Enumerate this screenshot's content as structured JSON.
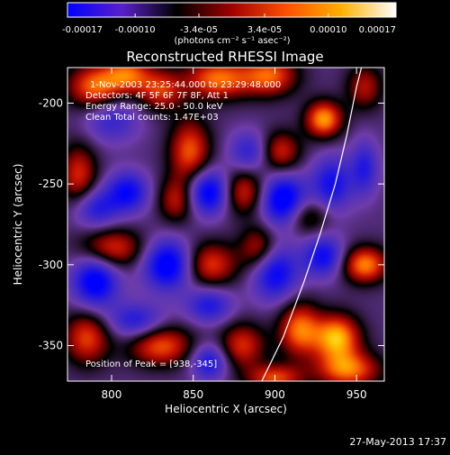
{
  "chart_data": {
    "type": "heatmap",
    "title": "Reconstructed RHESSI Image",
    "xlabel": "Heliocentric X (arcsec)",
    "ylabel": "Heliocentric Y (arcsec)",
    "xlim": [
      773,
      967
    ],
    "ylim": [
      -372,
      -178
    ],
    "x_ticks": [
      800,
      850,
      900,
      950
    ],
    "y_ticks": [
      -200,
      -250,
      -300,
      -350
    ],
    "x_tick_labels": [
      "800",
      "850",
      "900",
      "950"
    ],
    "y_tick_labels": [
      "-200",
      "-250",
      "-300",
      "-350"
    ],
    "colorbar": {
      "range": [
        -0.00017,
        0.00017
      ],
      "tick_values": [
        -0.00017,
        -0.0001,
        -3.4e-05,
        3.4e-05,
        0.0001,
        0.00017
      ],
      "tick_labels": [
        "-0.00017",
        "-0.00010",
        "-3.4e-05",
        "3.4e-05",
        "0.00010",
        "0.00017"
      ],
      "units_label": "(photons cm⁻² s⁻¹ asec⁻²)",
      "colors": [
        "#0000ff",
        "#5a20c8",
        "#000000",
        "#a00000",
        "#ff5000",
        "#ffb000",
        "#ffffff"
      ]
    },
    "annotations": [
      "1-Nov-2003 23:25:44.000 to 23:29:48.000",
      "Detectors: 4F 5F 6F 7F 8F, Att 1",
      "Energy Range: 25.0 - 50.0 keV",
      "Clean     Total counts: 1.47E+03"
    ],
    "peak_label": "Position of Peak = [938,-345]",
    "peak": [
      938,
      -345
    ],
    "limb_curve": [
      [
        892,
        -372
      ],
      [
        905,
        -345
      ],
      [
        918,
        -310
      ],
      [
        928,
        -280
      ],
      [
        937,
        -250
      ],
      [
        944,
        -220
      ],
      [
        950,
        -190
      ],
      [
        953,
        -178
      ]
    ],
    "blobs": [
      {
        "x": 790,
        "y": -190,
        "v": 0.00014,
        "sx": 12,
        "sy": 10
      },
      {
        "x": 810,
        "y": -182,
        "v": 0.00012,
        "sx": 10,
        "sy": 8
      },
      {
        "x": 830,
        "y": -192,
        "v": 0.00011,
        "sx": 10,
        "sy": 9
      },
      {
        "x": 865,
        "y": -185,
        "v": 0.00014,
        "sx": 14,
        "sy": 9
      },
      {
        "x": 897,
        "y": -183,
        "v": 0.00013,
        "sx": 12,
        "sy": 9
      },
      {
        "x": 930,
        "y": -210,
        "v": 0.00016,
        "sx": 8,
        "sy": 8
      },
      {
        "x": 955,
        "y": -190,
        "v": 9e-05,
        "sx": 8,
        "sy": 10
      },
      {
        "x": 780,
        "y": -245,
        "v": 0.00011,
        "sx": 8,
        "sy": 14
      },
      {
        "x": 848,
        "y": -230,
        "v": 0.00013,
        "sx": 9,
        "sy": 14
      },
      {
        "x": 840,
        "y": -260,
        "v": 0.0001,
        "sx": 8,
        "sy": 10
      },
      {
        "x": 880,
        "y": -255,
        "v": 0.00012,
        "sx": 10,
        "sy": 10
      },
      {
        "x": 903,
        "y": -230,
        "v": 0.00011,
        "sx": 9,
        "sy": 9
      },
      {
        "x": 920,
        "y": -270,
        "v": 8e-05,
        "sx": 9,
        "sy": 8
      },
      {
        "x": 800,
        "y": -290,
        "v": 0.00012,
        "sx": 14,
        "sy": 9
      },
      {
        "x": 860,
        "y": -300,
        "v": 0.00012,
        "sx": 12,
        "sy": 10
      },
      {
        "x": 890,
        "y": -290,
        "v": 0.0001,
        "sx": 8,
        "sy": 10
      },
      {
        "x": 955,
        "y": -300,
        "v": 0.00015,
        "sx": 10,
        "sy": 8
      },
      {
        "x": 785,
        "y": -345,
        "v": 0.00012,
        "sx": 10,
        "sy": 12
      },
      {
        "x": 830,
        "y": -350,
        "v": 0.00013,
        "sx": 14,
        "sy": 9
      },
      {
        "x": 880,
        "y": -350,
        "v": 0.00011,
        "sx": 10,
        "sy": 10
      },
      {
        "x": 915,
        "y": -340,
        "v": 0.00014,
        "sx": 9,
        "sy": 12
      },
      {
        "x": 938,
        "y": -345,
        "v": 0.00017,
        "sx": 10,
        "sy": 10
      },
      {
        "x": 945,
        "y": -365,
        "v": 0.00014,
        "sx": 14,
        "sy": 8
      },
      {
        "x": 900,
        "y": -370,
        "v": 0.00012,
        "sx": 12,
        "sy": 6
      },
      {
        "x": 800,
        "y": -210,
        "v": -8e-05,
        "sx": 12,
        "sy": 10
      },
      {
        "x": 790,
        "y": -265,
        "v": -0.0001,
        "sx": 10,
        "sy": 9
      },
      {
        "x": 810,
        "y": -255,
        "v": -0.00012,
        "sx": 9,
        "sy": 9
      },
      {
        "x": 860,
        "y": -255,
        "v": -0.00016,
        "sx": 10,
        "sy": 10
      },
      {
        "x": 885,
        "y": -230,
        "v": -9e-05,
        "sx": 9,
        "sy": 9
      },
      {
        "x": 905,
        "y": -260,
        "v": -0.00016,
        "sx": 10,
        "sy": 11
      },
      {
        "x": 935,
        "y": -250,
        "v": -0.00011,
        "sx": 9,
        "sy": 12
      },
      {
        "x": 955,
        "y": -240,
        "v": -9e-05,
        "sx": 6,
        "sy": 12
      },
      {
        "x": 790,
        "y": -310,
        "v": -0.00015,
        "sx": 10,
        "sy": 12
      },
      {
        "x": 835,
        "y": -300,
        "v": -0.00016,
        "sx": 11,
        "sy": 11
      },
      {
        "x": 860,
        "y": -325,
        "v": -0.0001,
        "sx": 10,
        "sy": 8
      },
      {
        "x": 900,
        "y": -305,
        "v": -0.00013,
        "sx": 10,
        "sy": 12
      },
      {
        "x": 930,
        "y": -295,
        "v": -0.00012,
        "sx": 9,
        "sy": 9
      },
      {
        "x": 815,
        "y": -335,
        "v": -0.0001,
        "sx": 12,
        "sy": 8
      },
      {
        "x": 860,
        "y": -360,
        "v": -0.00011,
        "sx": 8,
        "sy": 8
      }
    ]
  },
  "footer": {
    "timestamp": "27-May-2013 17:37"
  }
}
